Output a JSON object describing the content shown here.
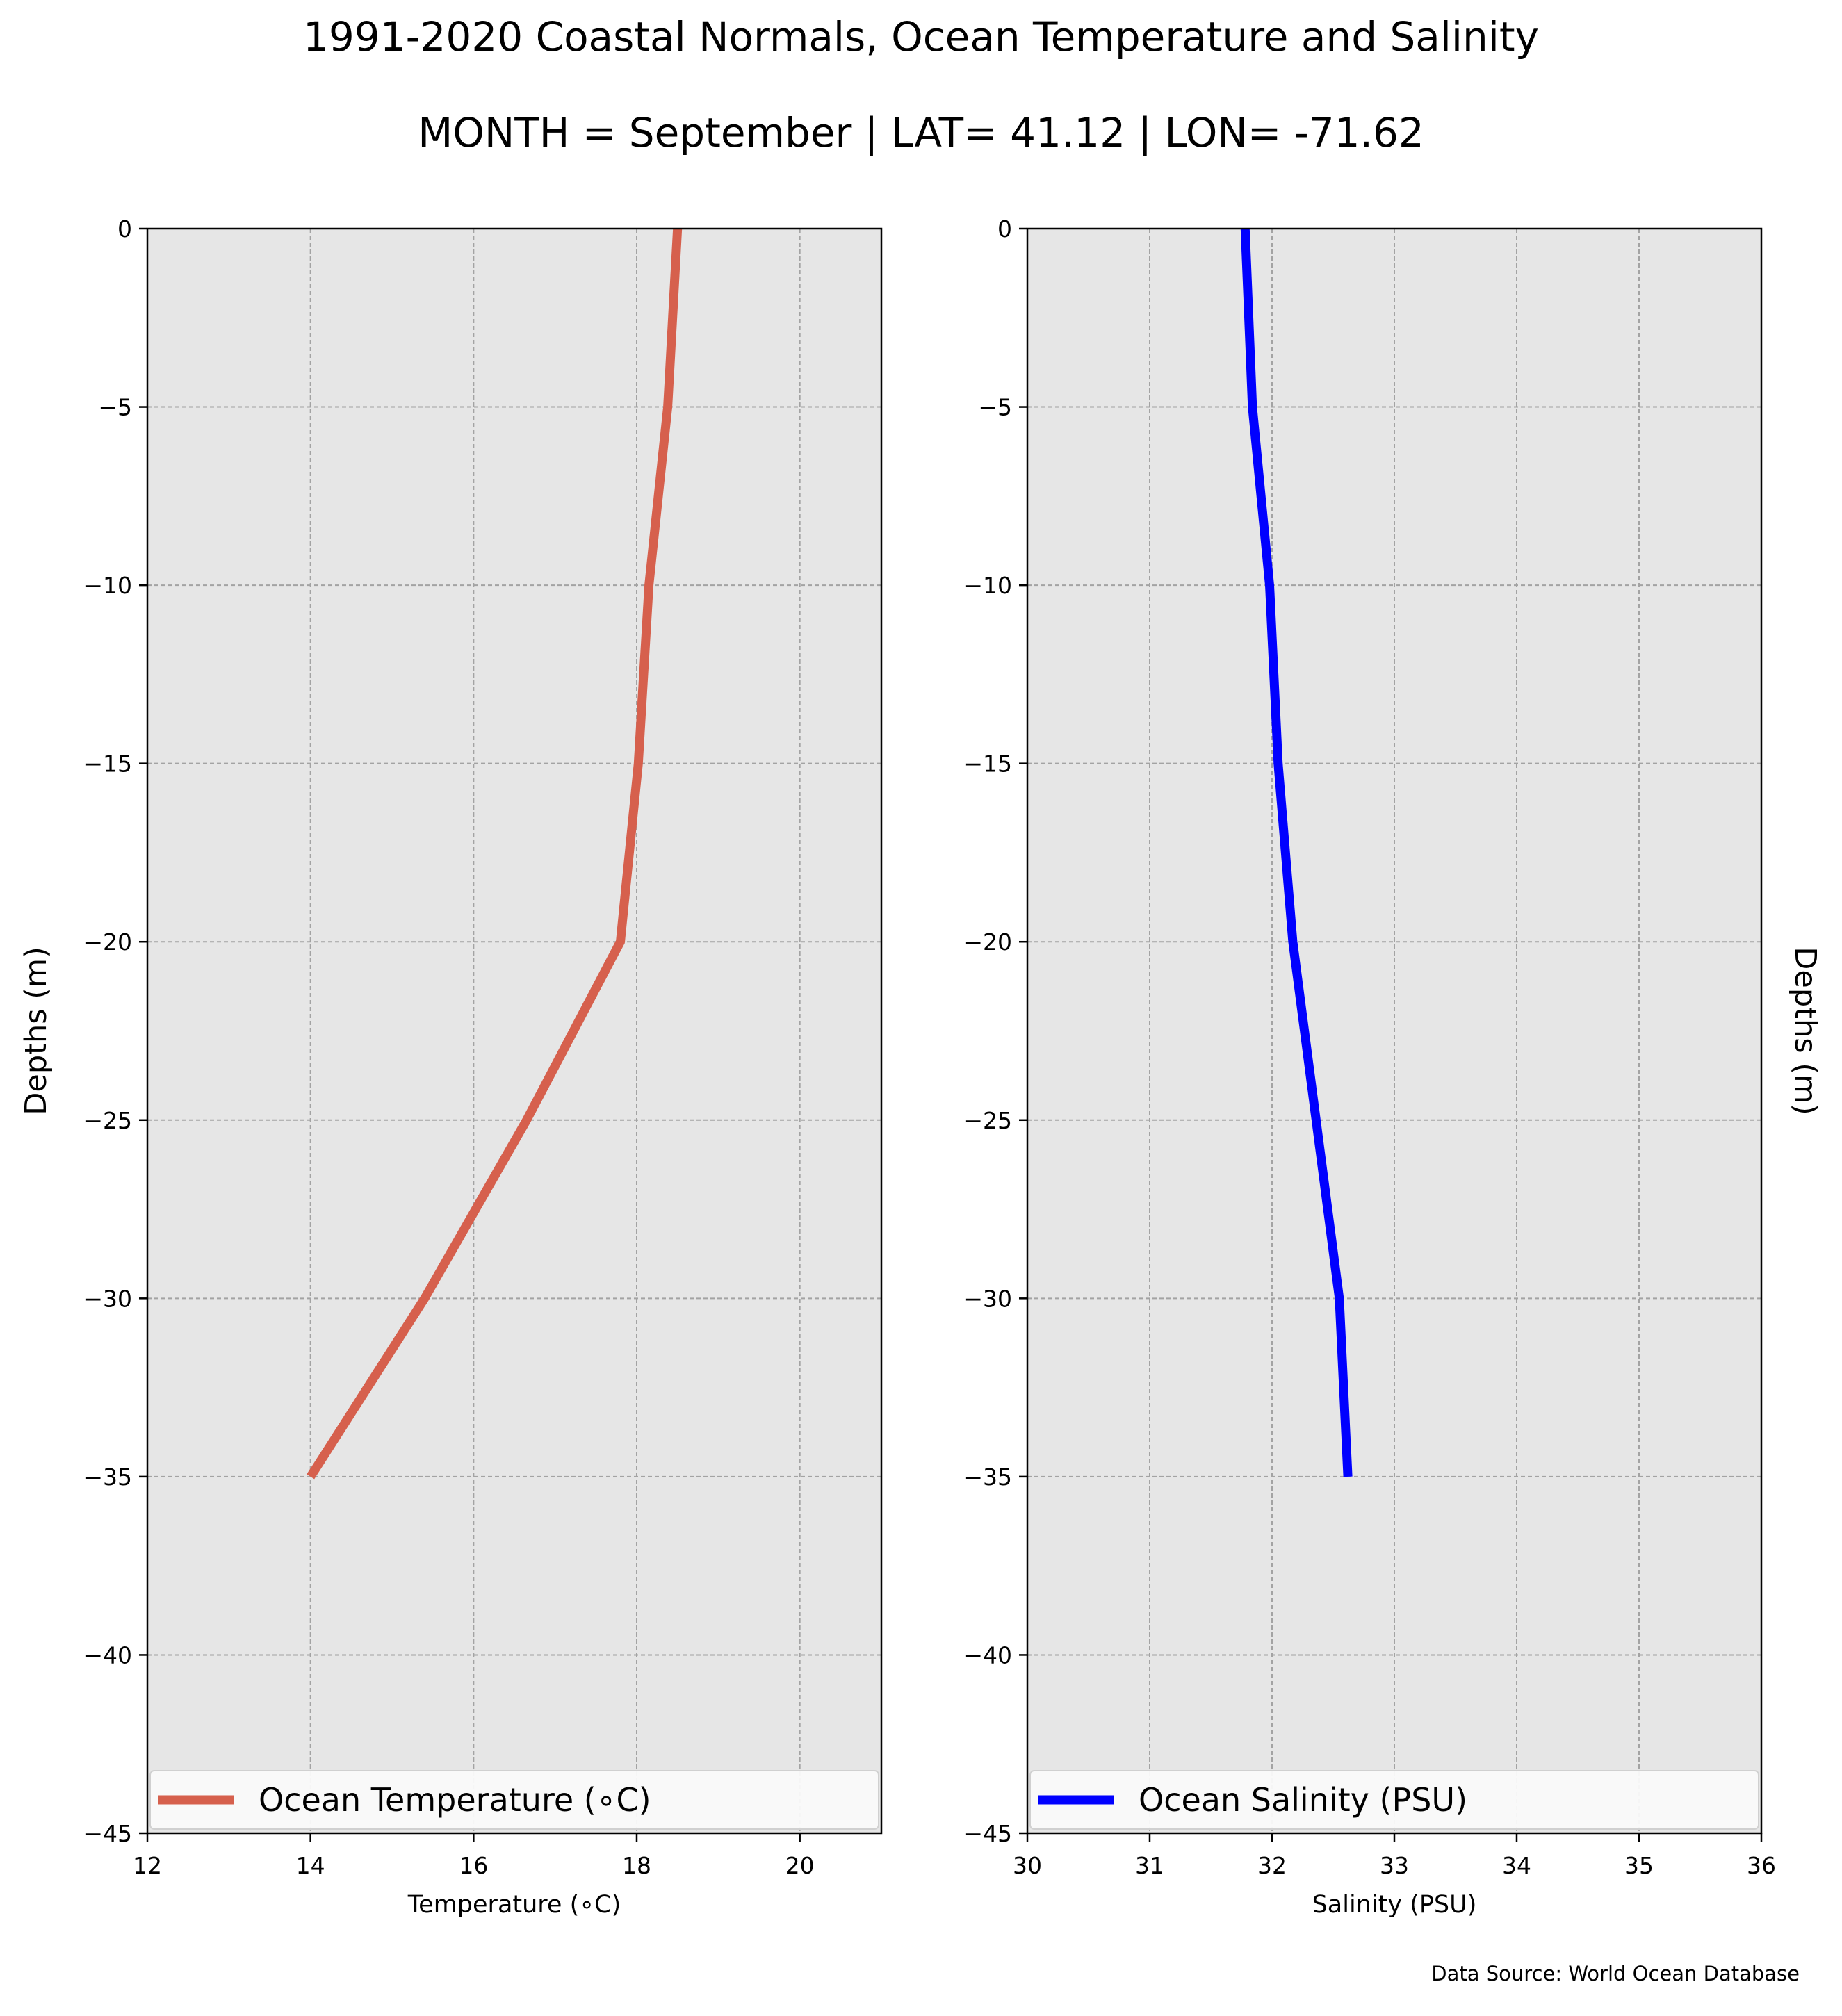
{
  "figure": {
    "title_line1": "1991-2020 Coastal Normals, Ocean Temperature and Salinity",
    "title_line2": "MONTH = September | LAT= 41.12 | LON= -71.62",
    "source_note": "Data Source: World Ocean Database"
  },
  "chart_data": [
    {
      "type": "line",
      "xlabel": "Temperature ($^\\circ$C)",
      "xlabel_display": "Temperature (∘C)",
      "ylabel": "Depths (m)",
      "xlim": [
        12,
        21
      ],
      "ylim": [
        -45,
        0
      ],
      "xticks": [
        12,
        14,
        16,
        18,
        20
      ],
      "yticks": [
        0,
        -5,
        -10,
        -15,
        -20,
        -25,
        -30,
        -35,
        -40,
        -45
      ],
      "grid": true,
      "background_color": "#e6e6e6",
      "legend_position": "bottom",
      "series": [
        {
          "name": "Ocean Temperature (∘C)",
          "color": "#d6604d",
          "depths": [
            0,
            -5,
            -10,
            -15,
            -20,
            -25,
            -30,
            -35
          ],
          "values": [
            18.5,
            18.38,
            18.15,
            18.02,
            17.8,
            16.65,
            15.4,
            14.0
          ]
        }
      ]
    },
    {
      "type": "line",
      "xlabel": "Salinity (PSU)",
      "ylabel": "Depths (m)",
      "ylabel_side": "right",
      "xlim": [
        30,
        36
      ],
      "ylim": [
        -45,
        0
      ],
      "xticks": [
        30,
        31,
        32,
        33,
        34,
        35,
        36
      ],
      "yticks": [
        0,
        -5,
        -10,
        -15,
        -20,
        -25,
        -30,
        -35,
        -40,
        -45
      ],
      "grid": true,
      "background_color": "#e6e6e6",
      "legend_position": "bottom",
      "series": [
        {
          "name": "Ocean Salinity (PSU)",
          "color": "#0000ff",
          "depths": [
            0,
            -5,
            -10,
            -15,
            -20,
            -25,
            -30,
            -35
          ],
          "values": [
            31.78,
            31.84,
            31.98,
            32.05,
            32.17,
            32.36,
            32.55,
            32.62
          ]
        }
      ]
    }
  ]
}
